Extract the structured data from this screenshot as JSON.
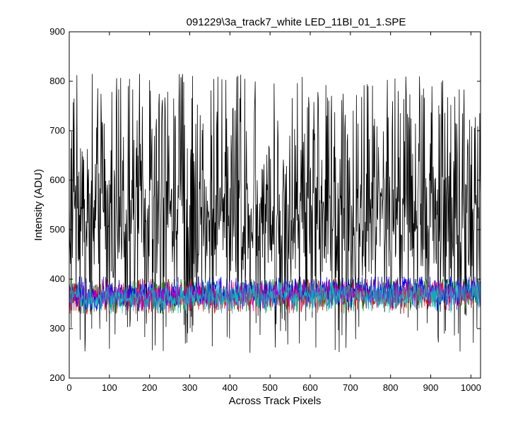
{
  "chart_data": {
    "type": "line",
    "title": "091229\\3a_track7_white LED_11BI_01_1.SPE",
    "xlabel": "Across Track Pixels",
    "ylabel": "Intensity (ADU)",
    "xlim": [
      0,
      1024
    ],
    "ylim": [
      200,
      900
    ],
    "xticks": [
      0,
      100,
      200,
      300,
      400,
      500,
      600,
      700,
      800,
      900,
      1000
    ],
    "yticks": [
      200,
      300,
      400,
      500,
      600,
      700,
      800,
      900
    ],
    "grid": false,
    "legend": "none",
    "series": [
      {
        "color": "#000000",
        "description_values": "noisy trace oscillating mostly between 300 and 800, peaks up to ~815, dips down to ~250",
        "value_range": [
          250,
          815
        ],
        "mean_estimate": 520
      },
      {
        "color": "#008000",
        "value_range": [
          330,
          400
        ],
        "mean_estimate": 365
      },
      {
        "color": "#ff0000",
        "value_range": [
          330,
          400
        ],
        "mean_estimate": 362
      },
      {
        "color": "#0000ff",
        "value_range": [
          335,
          405
        ],
        "mean_estimate": 368
      },
      {
        "color": "#bf00bf",
        "value_range": [
          335,
          395
        ],
        "mean_estimate": 363
      },
      {
        "color": "#00bfbf",
        "value_range": [
          330,
          395
        ],
        "mean_estimate": 360
      }
    ]
  }
}
